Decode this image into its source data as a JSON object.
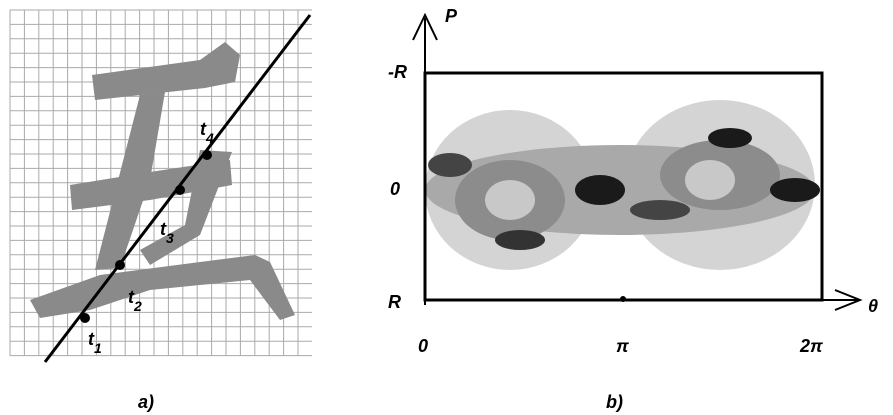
{
  "panel_a": {
    "caption": "a)",
    "points": [
      {
        "letter": "t",
        "index": "1"
      },
      {
        "letter": "t",
        "index": "2"
      },
      {
        "letter": "t",
        "index": "3"
      },
      {
        "letter": "t",
        "index": "4"
      }
    ]
  },
  "panel_b": {
    "caption": "b)",
    "vertical_axis": "P",
    "horizontal_axis": "θ",
    "row_labels": [
      "-R",
      "0",
      "R"
    ],
    "column_labels": [
      "0",
      "π",
      "2π"
    ]
  }
}
